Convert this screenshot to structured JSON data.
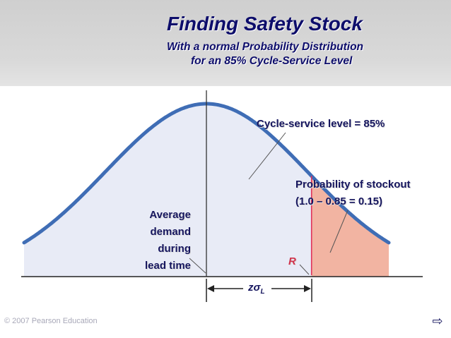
{
  "slide": {
    "title": "Finding Safety Stock",
    "subtitle_line1": "With a normal Probability Distribution",
    "subtitle_line2": "for an 85% Cycle-Service Level"
  },
  "labels": {
    "average_demand": [
      "Average",
      "demand",
      "during",
      "lead time"
    ],
    "cycle_service_level": "Cycle-service level = 85%",
    "stockout_line1": "Probability of stockout",
    "stockout_line2": "(1.0 – 0.85 = 0.15)",
    "reorder_point": "R",
    "z_sigma": "zσ",
    "z_sigma_sub": "L"
  },
  "footer": {
    "copyright": "© 2007 Pearson Education",
    "next_icon": "next-arrow-icon",
    "next_glyph": "⇨"
  },
  "colors": {
    "curve": "#3f6db5",
    "body_fill": "#e8ebf6",
    "tail_fill": "#f2b4a2",
    "reorder_line": "#e0305a",
    "text": "#15155e"
  },
  "chart_data": {
    "type": "area",
    "distribution": "normal",
    "cycle_service_level": 0.85,
    "stockout_probability": 0.15,
    "z": 1.04,
    "x_markers": [
      "mean (average demand during lead time)",
      "R"
    ]
  }
}
